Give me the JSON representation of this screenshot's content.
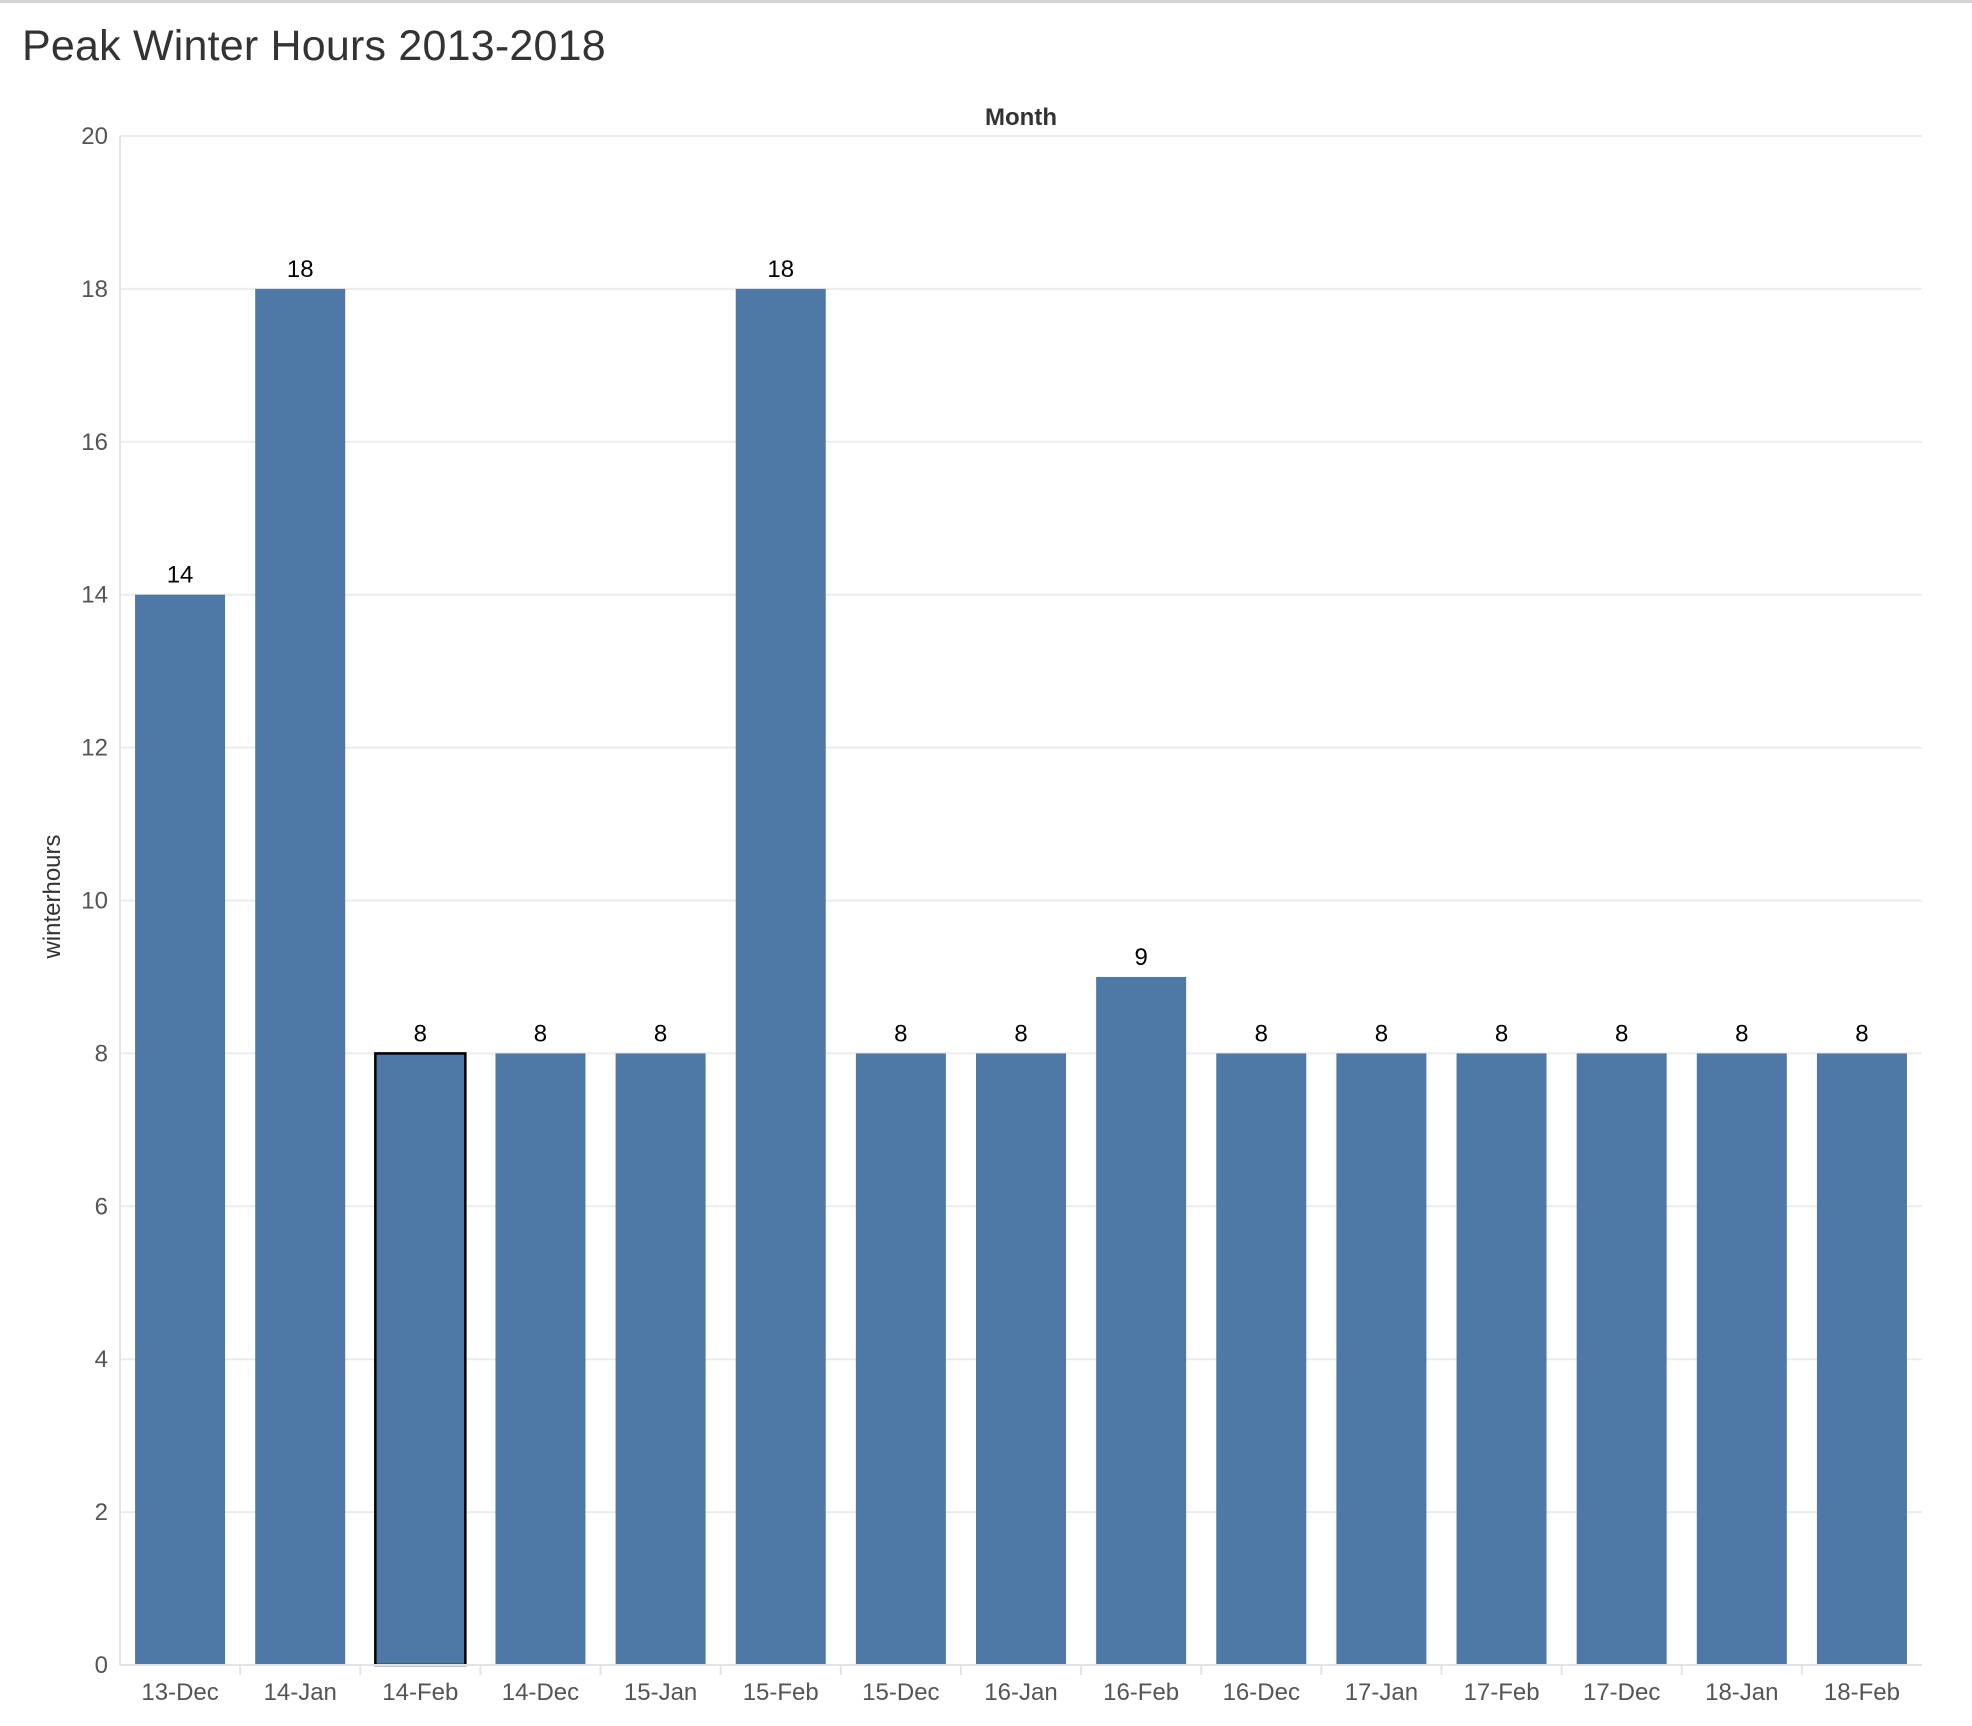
{
  "title": "Peak Winter Hours 2013-2018",
  "chart_data": {
    "type": "bar",
    "title": "Peak Winter Hours 2013-2018",
    "header": "Month",
    "xlabel": "",
    "ylabel": "winterhours",
    "ylim": [
      0,
      20
    ],
    "yticks": [
      0,
      2,
      4,
      6,
      8,
      10,
      12,
      14,
      16,
      18,
      20
    ],
    "categories": [
      "13-Dec",
      "14-Jan",
      "14-Feb",
      "14-Dec",
      "15-Jan",
      "15-Feb",
      "15-Dec",
      "16-Jan",
      "16-Feb",
      "16-Dec",
      "17-Jan",
      "17-Feb",
      "17-Dec",
      "18-Jan",
      "18-Feb"
    ],
    "values": [
      14,
      18,
      8,
      8,
      8,
      18,
      8,
      8,
      9,
      8,
      8,
      8,
      8,
      8,
      8
    ],
    "highlighted": "14-Feb",
    "grid": true,
    "colors": {
      "bar": "#4e79a7",
      "highlight_outline": "#000000",
      "grid": "#ececec"
    }
  }
}
